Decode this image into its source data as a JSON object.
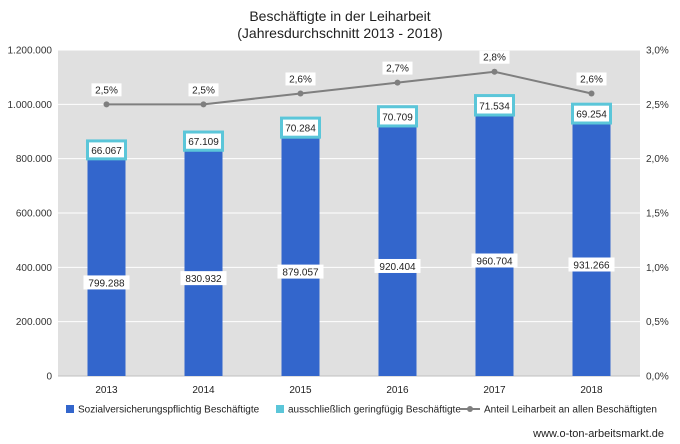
{
  "chart_data": {
    "type": "bar",
    "title": "Beschäftigte in der Leiharbeit",
    "subtitle": "(Jahresdurchschnitt 2013 - 2018)",
    "categories": [
      "2013",
      "2014",
      "2015",
      "2016",
      "2017",
      "2018"
    ],
    "series": [
      {
        "name": "Sozialversicherungspflichtig Beschäftigte",
        "kind": "stacked-bar",
        "color": "#3366cc",
        "values": [
          799288,
          830932,
          879057,
          920404,
          960704,
          931266
        ],
        "labels": [
          "799.288",
          "830.932",
          "879.057",
          "920.404",
          "960.704",
          "931.266"
        ]
      },
      {
        "name": "ausschließlich geringfügig Beschäftigte",
        "kind": "stacked-bar",
        "color": "#5bc6d9",
        "values": [
          66067,
          67109,
          70284,
          70709,
          71534,
          69254
        ],
        "labels": [
          "66.067",
          "67.109",
          "70.284",
          "70.709",
          "71.534",
          "69.254"
        ]
      },
      {
        "name": "Anteil Leiharbeit an allen Beschäftigten",
        "kind": "line",
        "axis": "secondary",
        "color": "#7f7f7f",
        "values": [
          2.5,
          2.5,
          2.6,
          2.7,
          2.8,
          2.6
        ],
        "labels": [
          "2,5%",
          "2,5%",
          "2,6%",
          "2,7%",
          "2,8%",
          "2,6%"
        ]
      }
    ],
    "y_axis": {
      "ylim": [
        0,
        1200000
      ],
      "ticks": [
        "0",
        "200.000",
        "400.000",
        "600.000",
        "800.000",
        "1.000.000",
        "1.200.000"
      ]
    },
    "y2_axis": {
      "ylim": [
        0,
        3.0
      ],
      "ticks": [
        "0,0%",
        "0,5%",
        "1,0%",
        "1,5%",
        "2,0%",
        "2,5%",
        "3,0%"
      ]
    },
    "grid": true,
    "plot_background": "#e0e0e0",
    "legend_position": "bottom"
  },
  "source_text": "www.o-ton-arbeitsmarkt.de"
}
